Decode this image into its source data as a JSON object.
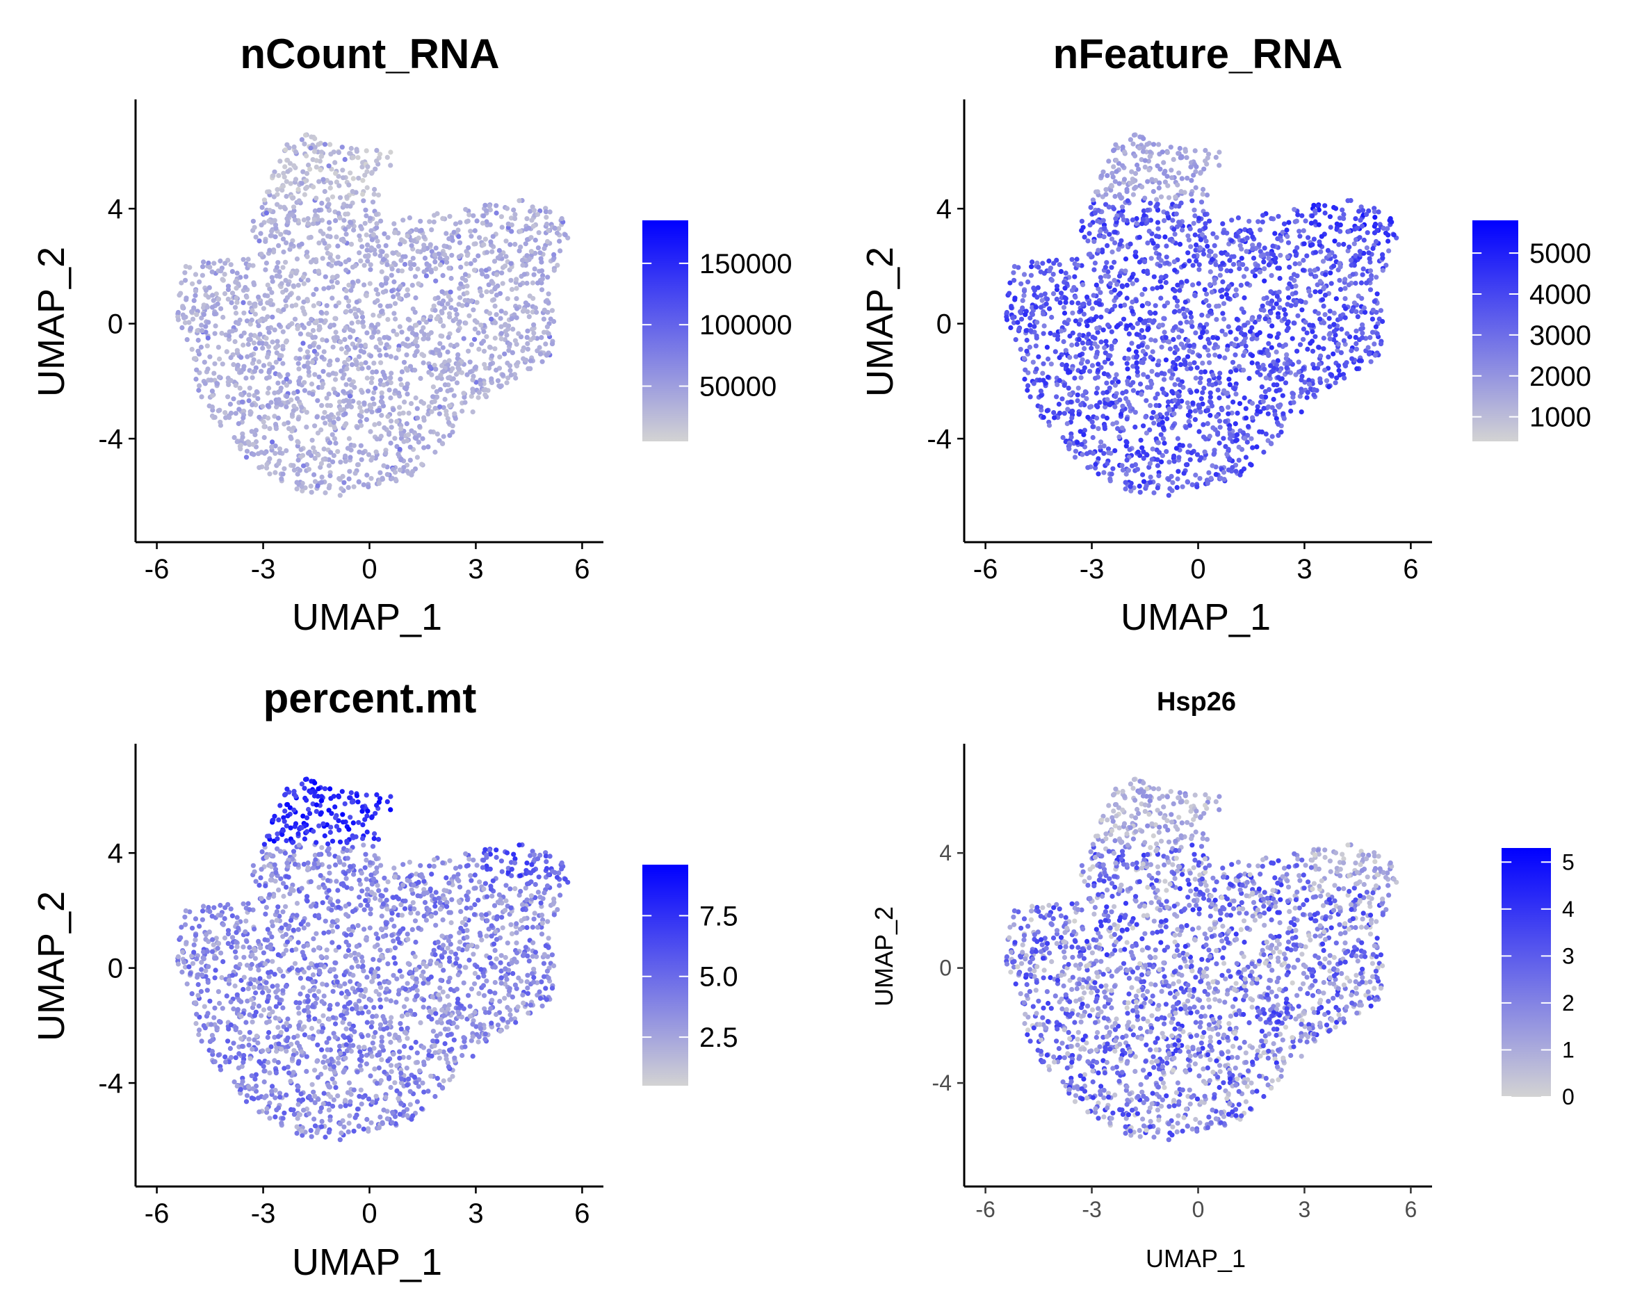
{
  "figure": {
    "panels": [
      {
        "id": "nCount_RNA",
        "title": "nCount_RNA",
        "xlabel": "UMAP_1",
        "ylabel": "UMAP_2",
        "legend_ticks": [
          "150000",
          "100000",
          "50000"
        ]
      },
      {
        "id": "nFeature_RNA",
        "title": "nFeature_RNA",
        "xlabel": "UMAP_1",
        "ylabel": "UMAP_2",
        "legend_ticks": [
          "5000",
          "4000",
          "3000",
          "2000",
          "1000"
        ]
      },
      {
        "id": "percent_mt",
        "title": "percent.mt",
        "xlabel": "UMAP_1",
        "ylabel": "UMAP_2",
        "legend_ticks": [
          "7.5",
          "5.0",
          "2.5"
        ]
      },
      {
        "id": "Hsp26",
        "title": "Hsp26",
        "xlabel": "UMAP_1",
        "ylabel": "UMAP_2",
        "legend_ticks": [
          "5",
          "4",
          "3",
          "2",
          "1",
          "0"
        ]
      }
    ]
  },
  "chart_data": [
    {
      "type": "scatter",
      "title": "nCount_RNA",
      "xlabel": "UMAP_1",
      "ylabel": "UMAP_2",
      "x_ticks": [
        -6,
        -3,
        0,
        3,
        6
      ],
      "y_ticks": [
        4,
        0,
        -4
      ],
      "xlim": [
        -6.6,
        6.6
      ],
      "ylim": [
        -7.6,
        7.8
      ],
      "color_scale": {
        "low": "#d3d3d3",
        "high": "#0000ff",
        "min": 5000,
        "max": 185000,
        "ticks": [
          150000,
          100000,
          50000
        ]
      },
      "feature_pattern": "uniform_low"
    },
    {
      "type": "scatter",
      "title": "nFeature_RNA",
      "xlabel": "UMAP_1",
      "ylabel": "UMAP_2",
      "x_ticks": [
        -6,
        -3,
        0,
        3,
        6
      ],
      "y_ticks": [
        4,
        0,
        -4
      ],
      "xlim": [
        -6.6,
        6.6
      ],
      "ylim": [
        -7.6,
        7.8
      ],
      "color_scale": {
        "low": "#d3d3d3",
        "high": "#0000ff",
        "min": 400,
        "max": 5800,
        "ticks": [
          5000,
          4000,
          3000,
          2000,
          1000
        ]
      },
      "feature_pattern": "high_except_top"
    },
    {
      "type": "scatter",
      "title": "percent.mt",
      "xlabel": "UMAP_1",
      "ylabel": "UMAP_2",
      "x_ticks": [
        -6,
        -3,
        0,
        3,
        6
      ],
      "y_ticks": [
        4,
        0,
        -4
      ],
      "xlim": [
        -6.6,
        6.6
      ],
      "ylim": [
        -7.6,
        7.8
      ],
      "color_scale": {
        "low": "#d3d3d3",
        "high": "#0000ff",
        "min": 0.5,
        "max": 9.6,
        "ticks": [
          7.5,
          5.0,
          2.5
        ]
      },
      "feature_pattern": "top_high"
    },
    {
      "type": "scatter",
      "title": "Hsp26",
      "xlabel": "UMAP_1",
      "ylabel": "UMAP_2",
      "x_ticks": [
        -6,
        -3,
        0,
        3,
        6
      ],
      "y_ticks": [
        4,
        0,
        -4
      ],
      "xlim": [
        -6.6,
        6.6
      ],
      "ylim": [
        -7.6,
        7.8
      ],
      "color_scale": {
        "low": "#d3d3d3",
        "high": "#0000ff",
        "min": 0,
        "max": 5.3,
        "ticks": [
          5,
          4,
          3,
          2,
          1,
          0
        ]
      },
      "feature_pattern": "mid_mixed"
    }
  ]
}
